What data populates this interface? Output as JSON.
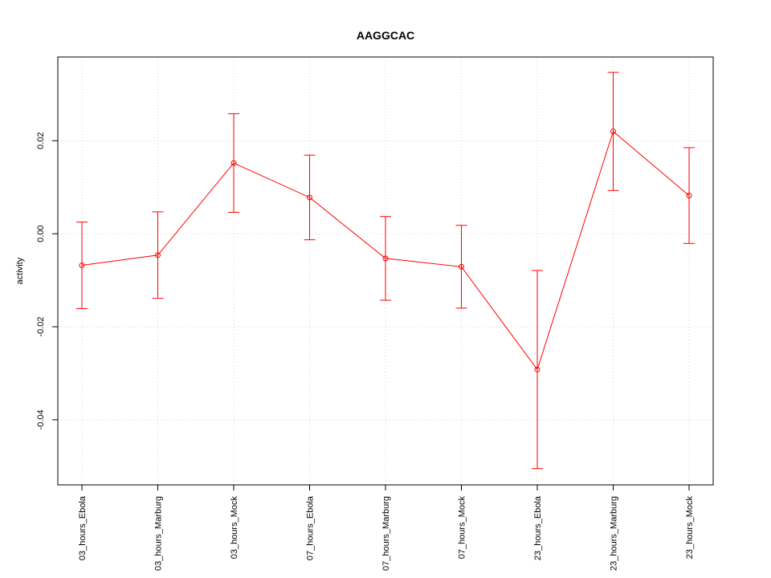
{
  "chart_data": {
    "type": "line",
    "title": "AAGGCAC",
    "xlabel": "",
    "ylabel": "activity",
    "categories": [
      "03_hours_Ebola",
      "03_hours_Marburg",
      "03_hours_Mock",
      "07_hours_Ebola",
      "07_hours_Marburg",
      "07_hours_Mock",
      "23_hours_Ebola",
      "23_hours_Marburg",
      "23_hours_Mock"
    ],
    "series": [
      {
        "values": [
          -0.0068,
          -0.0046,
          0.0152,
          0.0078,
          -0.0053,
          -0.0071,
          -0.0292,
          0.022,
          0.0082
        ],
        "upper": [
          0.0025,
          0.0047,
          0.0258,
          0.0169,
          0.0037,
          0.0018,
          -0.0079,
          0.0347,
          0.0185
        ],
        "lower": [
          -0.0161,
          -0.0139,
          0.0046,
          -0.0013,
          -0.0143,
          -0.016,
          -0.0505,
          0.0093,
          -0.0021
        ],
        "color": "#ff0000"
      }
    ],
    "yticks": [
      -0.04,
      -0.02,
      0.0,
      0.02
    ],
    "ytick_labels": [
      "-0.04",
      "-0.02",
      "0.00",
      "0.02"
    ],
    "ylim": [
      -0.054,
      0.038
    ],
    "grid": true,
    "grid_color": "#d3d3d3",
    "axis_color": "#000000"
  }
}
